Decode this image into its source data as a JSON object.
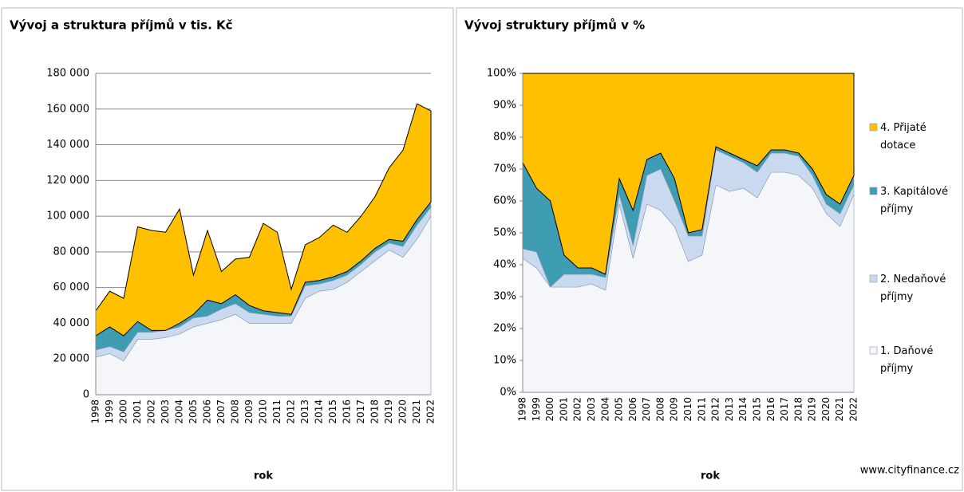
{
  "chart_data": [
    {
      "type": "stacked_area",
      "title": "Vývoj a struktura příjmů v tis. Kč",
      "x_label": "rok",
      "categories": [
        "1998",
        "1999",
        "2000",
        "2001",
        "2002",
        "2003",
        "2004",
        "2005",
        "2006",
        "2007",
        "2008",
        "2009",
        "2010",
        "2011",
        "2012",
        "2013",
        "2014",
        "2015",
        "2016",
        "2017",
        "2018",
        "2019",
        "2020",
        "2021",
        "2022"
      ],
      "ylim": [
        0,
        180000
      ],
      "yticks": [
        0,
        {
          "value": 20000,
          "label": "20 000"
        },
        {
          "value": 40000,
          "label": "40 000"
        },
        {
          "value": 60000,
          "label": "60 000"
        },
        {
          "value": 80000,
          "label": "80 000"
        },
        {
          "value": 100000,
          "label": "100 000"
        },
        {
          "value": 120000,
          "label": "120 000"
        },
        {
          "value": 140000,
          "label": "140 000"
        },
        {
          "value": 160000,
          "label": "160 000"
        },
        {
          "value": 180000,
          "label": "180 000"
        }
      ],
      "grid": true,
      "series": [
        {
          "color": "#f4f6fa",
          "values": [
            21000,
            23000,
            19000,
            31000,
            31000,
            32000,
            34000,
            38000,
            40000,
            42000,
            45000,
            40000,
            40000,
            40000,
            40000,
            54000,
            58000,
            59000,
            63000,
            69000,
            75000,
            81000,
            77000,
            87000,
            100000
          ]
        },
        {
          "color": "#c9daf0",
          "values": [
            4000,
            4000,
            5000,
            4000,
            4000,
            4000,
            4000,
            5000,
            4000,
            6000,
            6000,
            6000,
            5000,
            4000,
            4000,
            7000,
            4000,
            5000,
            4000,
            4000,
            5000,
            4000,
            6000,
            8000,
            5000
          ]
        },
        {
          "color": "#3f9db3",
          "values": [
            8000,
            11000,
            9000,
            6000,
            1000,
            0,
            2000,
            2000,
            9000,
            3000,
            5000,
            4000,
            2000,
            2000,
            1000,
            2000,
            2000,
            2000,
            2000,
            2000,
            2000,
            2000,
            3000,
            3000,
            3000
          ]
        },
        {
          "color": "#ffc000",
          "values": [
            14000,
            20000,
            21000,
            53000,
            56000,
            55000,
            64000,
            22000,
            39000,
            18000,
            20000,
            27000,
            49000,
            45000,
            14000,
            21000,
            24000,
            29000,
            22000,
            25000,
            29000,
            40000,
            51000,
            65000,
            51000
          ]
        }
      ]
    },
    {
      "type": "stacked_area",
      "title": "Vývoj struktury příjmů v %",
      "x_label": "rok",
      "source": "www.cityfinance.cz",
      "categories": [
        "1998",
        "1999",
        "2000",
        "2001",
        "2002",
        "2003",
        "2004",
        "2005",
        "2006",
        "2007",
        "2008",
        "2009",
        "2010",
        "2011",
        "2012",
        "2013",
        "2014",
        "2015",
        "2016",
        "2017",
        "2018",
        "2019",
        "2020",
        "2021",
        "2022"
      ],
      "ylim": [
        0,
        100
      ],
      "yticks": [
        {
          "value": 0,
          "label": "0%"
        },
        {
          "value": 10,
          "label": "10%"
        },
        {
          "value": 20,
          "label": "20%"
        },
        {
          "value": 30,
          "label": "30%"
        },
        {
          "value": 40,
          "label": "40%"
        },
        {
          "value": 50,
          "label": "50%"
        },
        {
          "value": 60,
          "label": "60%"
        },
        {
          "value": 70,
          "label": "70%"
        },
        {
          "value": 80,
          "label": "80%"
        },
        {
          "value": 90,
          "label": "90%"
        },
        {
          "value": 100,
          "label": "100%"
        }
      ],
      "grid": false,
      "legend": "right",
      "series": [
        {
          "name": "1. Daňové příjmy",
          "color": "#f4f6fa",
          "values": [
            42,
            39,
            33,
            33,
            33,
            34,
            32,
            59,
            42,
            59,
            57,
            52,
            41,
            43,
            65,
            63,
            64,
            61,
            69,
            69,
            68,
            64,
            56,
            52,
            62
          ]
        },
        {
          "name": "2. Nedaňové příjmy",
          "color": "#c9daf0",
          "values": [
            3,
            5,
            0,
            4,
            4,
            3,
            4,
            3,
            4,
            9,
            13,
            8,
            8,
            6,
            11,
            11,
            8,
            8,
            6,
            6,
            6,
            4,
            3,
            4,
            3
          ]
        },
        {
          "name": "3. Kapitálové příjmy",
          "color": "#3f9db3",
          "values": [
            27,
            20,
            27,
            6,
            2,
            2,
            1,
            5,
            11,
            5,
            5,
            7,
            1,
            2,
            1,
            1,
            1,
            2,
            1,
            1,
            1,
            2,
            3,
            3,
            3
          ]
        },
        {
          "name": "4. Přijaté dotace",
          "color": "#ffc000",
          "values": [
            28,
            36,
            40,
            57,
            61,
            61,
            63,
            33,
            43,
            27,
            25,
            33,
            50,
            49,
            23,
            25,
            27,
            29,
            24,
            24,
            25,
            30,
            38,
            41,
            32
          ]
        }
      ]
    }
  ]
}
